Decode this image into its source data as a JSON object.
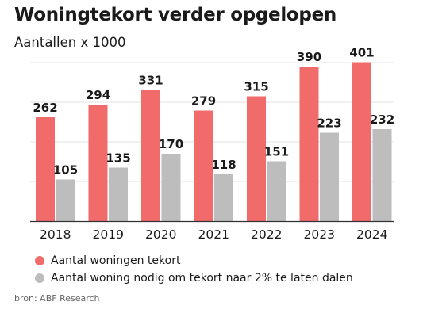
{
  "chart_data": {
    "type": "bar",
    "title": "Woningtekort verder opgelopen",
    "subtitle": "Aantallen x 1000",
    "categories": [
      "2018",
      "2019",
      "2020",
      "2021",
      "2022",
      "2023",
      "2024"
    ],
    "series": [
      {
        "name": "Aantal woningen tekort",
        "color": "#f26b6b",
        "values": [
          262,
          294,
          331,
          279,
          315,
          390,
          401
        ]
      },
      {
        "name": "Aantal woning nodig om tekort naar 2% te laten dalen",
        "color": "#bdbdbd",
        "values": [
          105,
          135,
          170,
          118,
          151,
          223,
          232
        ]
      }
    ],
    "ylim": [
      0,
      400
    ],
    "y_gridlines": [
      0,
      100,
      200,
      300,
      400
    ],
    "grid": true,
    "legend_position": "bottom-left",
    "data_labels": true
  },
  "source": "bron: ABF Research"
}
